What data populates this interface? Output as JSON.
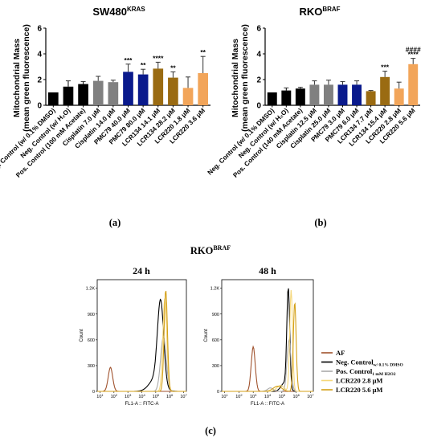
{
  "chart_data": [
    {
      "type": "bar",
      "title": "SW480",
      "title_sup": "KRAS",
      "ylabel_line1": "Mitochondrial Mass",
      "ylabel_line2": "(mean green fluorescence)",
      "ylim": [
        0,
        6
      ],
      "yticks": [
        "0",
        "2",
        "4",
        "6"
      ],
      "categories": [
        "Neg. Control (w/ 0.1% DMSO)",
        "Neg. Control (w/ H₂O)",
        "Pos. Control (100 mM Acetate)",
        "Cisplatin 7.0 μM",
        "Cisplatin 14.0 μM",
        "PMC79 40.0 μM",
        "PMC79 80.0 μM",
        "LCR134 14.1 μM",
        "LCR134 28.2 μM",
        "LCR220 1.8 μM",
        "LCR220 3.6 μM"
      ],
      "values": [
        1.0,
        1.45,
        1.65,
        1.9,
        1.8,
        2.6,
        2.4,
        2.85,
        2.15,
        1.35,
        2.5
      ],
      "errors": [
        0.0,
        0.45,
        0.2,
        0.35,
        0.15,
        0.6,
        0.4,
        0.5,
        0.45,
        0.85,
        1.3
      ],
      "colors": [
        "#000000",
        "#000000",
        "#000000",
        "#808080",
        "#808080",
        "#0a1a8c",
        "#0a1a8c",
        "#9a6b12",
        "#9a6b12",
        "#f2a55a",
        "#f2a55a"
      ],
      "significance": [
        "",
        "",
        "",
        "",
        "",
        "***",
        "**",
        "****",
        "**",
        "",
        "**"
      ],
      "panel_label": "(a)"
    },
    {
      "type": "bar",
      "title": "RKO",
      "title_sup": "BRAF",
      "ylabel_line1": "Mitochondrial Mass",
      "ylabel_line2": "(mean green fluorescence)",
      "ylim": [
        0,
        6
      ],
      "yticks": [
        "0",
        "2",
        "4",
        "6"
      ],
      "categories": [
        "Neg. Control (w/ 0.1% DMSO)",
        "Neg. Control (w/ H₂O)",
        "Pos. Control (140 mM Acetate)",
        "Cisplatin 12.5 μM",
        "Cisplatin 25.0 μM",
        "PMC79 3.0 μM",
        "PMC79 6.0 μM",
        "LCR134 7.7 μM",
        "LCR134 15.4 μM",
        "LCR220 2.8 μM",
        "LCR220 5.6 μM"
      ],
      "values": [
        1.0,
        1.15,
        1.3,
        1.6,
        1.6,
        1.6,
        1.6,
        1.1,
        2.2,
        1.3,
        3.2
      ],
      "errors": [
        0.0,
        0.2,
        0.1,
        0.3,
        0.35,
        0.25,
        0.3,
        0.05,
        0.45,
        0.5,
        0.45
      ],
      "colors": [
        "#000000",
        "#000000",
        "#000000",
        "#808080",
        "#808080",
        "#0a1a8c",
        "#0a1a8c",
        "#9a6b12",
        "#9a6b12",
        "#f2a55a",
        "#f2a55a"
      ],
      "significance": [
        "",
        "",
        "",
        "",
        "",
        "",
        "",
        "",
        "***",
        "",
        "****"
      ],
      "significance2": [
        "",
        "",
        "",
        "",
        "",
        "",
        "",
        "",
        "",
        "",
        "####"
      ],
      "panel_label": "(b)"
    },
    {
      "type": "line",
      "title": "RKO",
      "title_sup": "BRAF",
      "panels": [
        {
          "title": "24 h",
          "yticks": [
            "0",
            "300",
            "600",
            "900",
            "1.2K"
          ],
          "ylabel": "Count",
          "xlabel": "FL1-A :: FITC-A"
        },
        {
          "title": "48 h",
          "yticks": [
            "0",
            "300",
            "600",
            "900",
            "1.2K"
          ],
          "ylabel": "Count",
          "xlabel": "FL1-A :: FITC-A"
        }
      ],
      "xticks": [
        "10",
        "10",
        "10",
        "10",
        "10",
        "10",
        "10"
      ],
      "xtick_exponents": [
        "1",
        "2",
        "3",
        "4",
        "5",
        "6",
        "7"
      ],
      "series": [
        {
          "name": "AF",
          "sub": "",
          "color": "#a0522d"
        },
        {
          "name": "Neg. Control",
          "sub": "w/ 0.1% DMSO",
          "color": "#000000"
        },
        {
          "name": "Pos. Control",
          "sub": "1 mM H2O2",
          "color": "#aaaaaa"
        },
        {
          "name": "LCR220 2.8 μM",
          "sub": "",
          "color": "#f5d77a"
        },
        {
          "name": "LCR220 5.6 μM",
          "sub": "",
          "color": "#d4a017"
        }
      ],
      "panel_label": "(c)"
    }
  ]
}
